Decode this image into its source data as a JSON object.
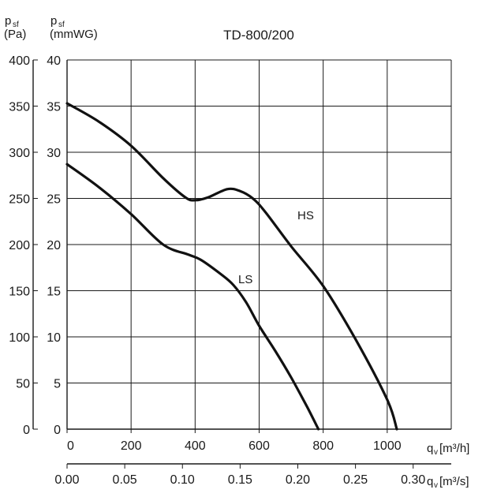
{
  "chart_data": {
    "type": "line",
    "title": "TD-800/200",
    "y_axis_left": {
      "symbol": "p",
      "subscript": "sf",
      "unit": "(Pa)",
      "range": [
        0,
        400
      ],
      "ticks": [
        "0",
        "50",
        "100",
        "150",
        "200",
        "250",
        "300",
        "350",
        "400"
      ]
    },
    "y_axis_right": {
      "symbol": "p",
      "subscript": "sf",
      "unit": "(mmWG)",
      "range": [
        0,
        40
      ],
      "ticks": [
        "0",
        "5",
        "10",
        "15",
        "20",
        "25",
        "30",
        "35",
        "40"
      ]
    },
    "x_axis_top": {
      "label_prefix": "q",
      "label_sub": "v",
      "label_unit": "[m³/h]",
      "range": [
        0,
        1200
      ],
      "ticks": [
        "0",
        "200",
        "400",
        "600",
        "800",
        "1000"
      ]
    },
    "x_axis_bottom": {
      "label_prefix": "q",
      "label_sub": "v",
      "label_unit": "[m³/s]",
      "range": [
        0,
        0.333
      ],
      "ticks": [
        "0.00",
        "0.05",
        "0.10",
        "0.15",
        "0.20",
        "0.25",
        "0.30"
      ]
    },
    "grid": true,
    "series": [
      {
        "name": "HS",
        "x": [
          0,
          100,
          200,
          300,
          370,
          400,
          440,
          500,
          540,
          580,
          620,
          700,
          800,
          900,
          1000,
          1030
        ],
        "y": [
          353,
          333,
          307,
          272,
          251,
          248,
          251,
          260,
          258,
          250,
          235,
          198,
          155,
          98,
          32,
          0
        ]
      },
      {
        "name": "LS",
        "x": [
          0,
          100,
          200,
          300,
          380,
          420,
          480,
          520,
          560,
          600,
          650,
          700,
          750,
          785
        ],
        "y": [
          287,
          262,
          233,
          200,
          189,
          183,
          168,
          156,
          137,
          112,
          85,
          56,
          24,
          0
        ]
      }
    ]
  }
}
